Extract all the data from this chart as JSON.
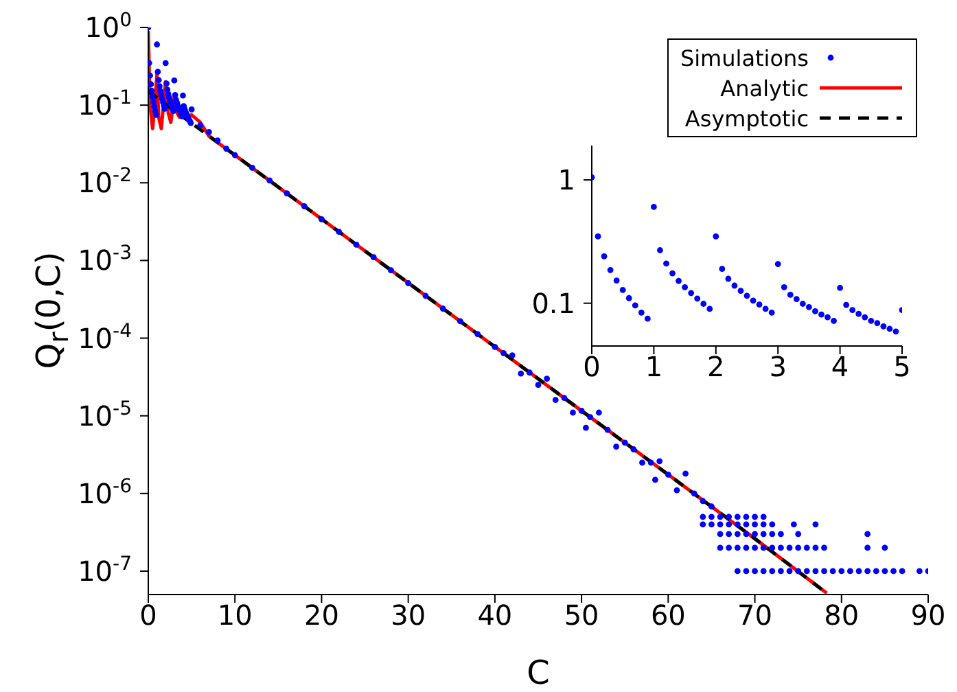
{
  "chart_data": [
    {
      "type": "scatter",
      "xlabel": "C",
      "ylabel": "Q$_{r}$(0,C)",
      "log": "y",
      "legend": "top right",
      "grid": false,
      "xlim": [
        0,
        90
      ],
      "xticks": [
        0,
        10,
        20,
        30,
        40,
        50,
        60,
        70,
        80,
        90
      ],
      "ylim": [
        5e-08,
        1
      ],
      "yticks": [
        {
          "value": 1e-07,
          "label": "10$^{-7}$"
        },
        {
          "value": 1e-06,
          "label": "10$^{-6}$"
        },
        {
          "value": 1e-05,
          "label": "10$^{-5}$"
        },
        {
          "value": 0.0001,
          "label": "10$^{-4}$"
        },
        {
          "value": 0.001,
          "label": "10$^{-3}$"
        },
        {
          "value": 0.01,
          "label": "10$^{-2}$"
        },
        {
          "value": 0.1,
          "label": "10$^{-1}$"
        },
        {
          "value": 1,
          "label": "10$^{0}$"
        }
      ],
      "series": [
        {
          "name": "Simulations",
          "type": "scatter",
          "marker": "circle",
          "color": "#0000ff",
          "x": [
            0,
            0.1,
            0.2,
            0.3,
            0.4,
            0.5,
            0.6,
            0.7,
            0.8,
            0.9,
            1,
            1.1,
            1.2,
            1.3,
            1.4,
            1.5,
            1.6,
            1.7,
            1.8,
            1.9,
            2,
            2.1,
            2.2,
            2.3,
            2.4,
            2.5,
            2.6,
            2.7,
            2.8,
            2.9,
            3,
            3.1,
            3.2,
            3.3,
            3.4,
            3.5,
            3.6,
            3.7,
            3.8,
            3.9,
            4,
            4.1,
            4.2,
            4.3,
            4.4,
            4.5,
            4.6,
            4.7,
            4.8,
            4.9,
            5,
            6,
            7,
            8,
            9,
            10,
            12,
            14,
            16,
            18,
            20,
            22,
            24,
            26,
            28,
            30,
            32,
            34,
            36,
            38,
            40,
            41,
            42,
            43,
            44,
            45,
            46,
            47,
            48,
            49,
            50,
            50.5,
            51,
            52,
            53,
            54,
            55,
            56,
            57,
            58,
            58.5,
            59,
            60,
            61,
            62,
            63,
            64,
            65,
            64,
            65,
            66,
            67,
            68,
            69,
            70,
            71,
            64,
            65,
            66,
            67,
            68,
            69,
            70,
            71,
            72,
            74.5,
            77,
            66,
            67,
            68,
            69,
            70,
            71,
            72,
            73,
            75,
            83,
            66,
            67,
            68,
            69,
            70,
            71,
            72,
            73,
            74,
            75,
            76,
            77,
            78,
            83,
            85,
            68,
            69,
            70,
            71,
            72,
            73,
            74,
            75,
            76,
            77,
            78,
            79,
            80,
            81,
            82,
            83,
            84,
            85,
            86,
            87,
            89,
            90
          ],
          "values": [
            1.0,
            0.348,
            0.24,
            0.186,
            0.153,
            0.128,
            0.11,
            0.096,
            0.084,
            0.075,
            0.604,
            0.269,
            0.21,
            0.175,
            0.152,
            0.135,
            0.121,
            0.109,
            0.099,
            0.09,
            0.348,
            0.19,
            0.158,
            0.139,
            0.126,
            0.115,
            0.105,
            0.0975,
            0.09,
            0.084,
            0.208,
            0.135,
            0.117,
            0.108,
            0.099,
            0.093,
            0.086,
            0.081,
            0.077,
            0.072,
            0.133,
            0.097,
            0.088,
            0.082,
            0.077,
            0.072,
            0.069,
            0.065,
            0.062,
            0.059,
            0.088,
            0.055,
            0.045,
            0.035,
            0.0275,
            0.0227,
            0.0156,
            0.0107,
            0.0073,
            0.005,
            0.0034,
            0.00234,
            0.0016,
            0.0011,
            0.00075,
            0.00051,
            0.00035,
            0.00024,
            0.000165,
            0.000113,
            7.7e-05,
            6.4e-05,
            6e-05,
            3.5e-05,
            3.6e-05,
            2.5e-05,
            3e-05,
            1.6e-05,
            1.7e-05,
            1.1e-05,
            1.16e-05,
            7e-06,
            9.6e-06,
            1.1e-05,
            6.6e-06,
            4e-06,
            4.5e-06,
            3.7e-06,
            2.5e-06,
            2.5e-06,
            1.5e-06,
            2.6e-06,
            1.75e-06,
            1.1e-06,
            1.8e-06,
            1e-06,
            8e-07,
            6.8e-07,
            5e-07,
            5e-07,
            5e-07,
            5e-07,
            5e-07,
            5e-07,
            5e-07,
            5e-07,
            4e-07,
            4e-07,
            4e-07,
            4e-07,
            4e-07,
            4e-07,
            4e-07,
            4e-07,
            4e-07,
            4e-07,
            4e-07,
            3e-07,
            3e-07,
            3e-07,
            3e-07,
            3e-07,
            3e-07,
            3e-07,
            3e-07,
            3e-07,
            3e-07,
            2e-07,
            2e-07,
            2e-07,
            2e-07,
            2e-07,
            2e-07,
            2e-07,
            2e-07,
            2e-07,
            2e-07,
            2e-07,
            2e-07,
            2e-07,
            2e-07,
            2e-07,
            1e-07,
            1e-07,
            1e-07,
            1e-07,
            1e-07,
            1e-07,
            1e-07,
            1e-07,
            1e-07,
            1e-07,
            1e-07,
            1e-07,
            1e-07,
            1e-07,
            1e-07,
            1e-07,
            1e-07,
            1e-07,
            1e-07,
            1e-07,
            1e-07,
            1e-07
          ]
        },
        {
          "name": "Analytic",
          "type": "line",
          "line_style": "solid",
          "color": "#ff0000",
          "x": [
            0,
            0.2,
            0.5,
            0.8,
            1,
            1.2,
            1.5,
            2,
            2.3,
            2.6,
            3,
            3.3,
            3.6,
            4,
            4.5,
            5,
            6,
            7,
            10,
            20,
            30,
            40,
            50,
            60,
            70,
            78.3
          ],
          "values": [
            0.9,
            0.1,
            0.05,
            0.12,
            0.25,
            0.07,
            0.05,
            0.2,
            0.08,
            0.06,
            0.13,
            0.08,
            0.07,
            0.1,
            0.07,
            0.075,
            0.06,
            0.04,
            0.0227,
            0.00342,
            0.000514,
            7.73e-05,
            1.16e-05,
            1.75e-06,
            2.62e-07,
            5.2e-08
          ]
        },
        {
          "name": "Asymptotic",
          "type": "line",
          "line_style": "dashed",
          "color": "#000000",
          "x": [
            0,
            10,
            20,
            30,
            40,
            50,
            60,
            70,
            78.3
          ],
          "values": [
            0.151,
            0.0227,
            0.00342,
            0.000514,
            7.73e-05,
            1.16e-05,
            1.75e-06,
            2.62e-07,
            5.2e-08
          ]
        }
      ]
    },
    {
      "type": "scatter",
      "log": "y",
      "marker": "circle",
      "color": "#0000ff",
      "grid": false,
      "xlim": [
        0,
        5
      ],
      "xticks": [
        0,
        1,
        2,
        3,
        4,
        5
      ],
      "ylim": [
        0.045,
        1.9
      ],
      "yticks": [
        0.1,
        1
      ],
      "x": [
        0,
        0.1,
        0.2,
        0.3,
        0.4,
        0.5,
        0.6,
        0.7,
        0.8,
        0.9,
        1,
        1.1,
        1.2,
        1.3,
        1.4,
        1.5,
        1.6,
        1.7,
        1.8,
        1.9,
        2,
        2.1,
        2.2,
        2.3,
        2.4,
        2.5,
        2.6,
        2.7,
        2.8,
        2.9,
        3,
        3.1,
        3.2,
        3.3,
        3.4,
        3.5,
        3.6,
        3.7,
        3.8,
        3.9,
        4,
        4.1,
        4.2,
        4.3,
        4.4,
        4.5,
        4.6,
        4.7,
        4.8,
        4.9,
        5
      ],
      "values": [
        1.05,
        0.348,
        0.24,
        0.186,
        0.153,
        0.128,
        0.11,
        0.096,
        0.084,
        0.075,
        0.604,
        0.269,
        0.21,
        0.175,
        0.152,
        0.135,
        0.121,
        0.109,
        0.099,
        0.09,
        0.348,
        0.19,
        0.158,
        0.139,
        0.126,
        0.115,
        0.105,
        0.0975,
        0.09,
        0.084,
        0.208,
        0.135,
        0.117,
        0.108,
        0.099,
        0.093,
        0.086,
        0.081,
        0.077,
        0.072,
        0.133,
        0.097,
        0.088,
        0.082,
        0.077,
        0.072,
        0.069,
        0.065,
        0.062,
        0.059,
        0.088
      ]
    }
  ]
}
